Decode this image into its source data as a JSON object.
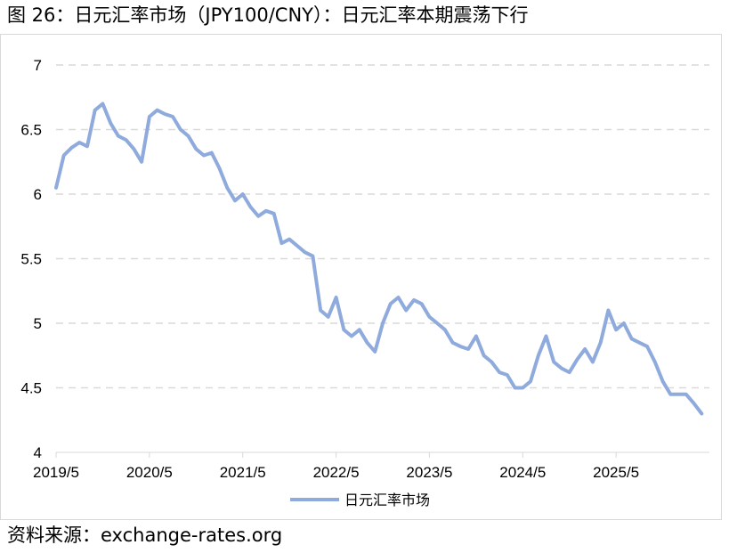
{
  "title": "图 26：日元汇率市场（JPY100/CNY）：日元汇率本期震荡下行",
  "source": "资料来源：exchange-rates.org",
  "chart_data": {
    "type": "line",
    "title": "图 26：日元汇率市场（JPY100/CNY）：日元汇率本期震荡下行",
    "xlabel": "",
    "ylabel": "",
    "x_tick_labels": [
      "2019/5",
      "2020/5",
      "2021/5",
      "2022/5",
      "2023/5",
      "2024/5",
      "2025/5"
    ],
    "y_tick_labels": [
      "4",
      "4.5",
      "5",
      "5.5",
      "6",
      "6.5",
      "7"
    ],
    "ylim": [
      4,
      7
    ],
    "xlim": [
      "2019-05",
      "2026-05"
    ],
    "grid": "horizontal dashed",
    "legend": "bottom-center",
    "color": "#8faadc",
    "series": [
      {
        "name": "日元汇率市场",
        "x": [
          "2019-05",
          "2019-06",
          "2019-07",
          "2019-08",
          "2019-09",
          "2019-10",
          "2019-11",
          "2019-12",
          "2020-01",
          "2020-02",
          "2020-03",
          "2020-04",
          "2020-05",
          "2020-06",
          "2020-07",
          "2020-08",
          "2020-09",
          "2020-10",
          "2020-11",
          "2020-12",
          "2021-01",
          "2021-02",
          "2021-03",
          "2021-04",
          "2021-05",
          "2021-06",
          "2021-07",
          "2021-08",
          "2021-09",
          "2021-10",
          "2021-11",
          "2021-12",
          "2022-01",
          "2022-02",
          "2022-03",
          "2022-04",
          "2022-05",
          "2022-06",
          "2022-07",
          "2022-08",
          "2022-09",
          "2022-10",
          "2022-11",
          "2022-12",
          "2023-01",
          "2023-02",
          "2023-03",
          "2023-04",
          "2023-05",
          "2023-06",
          "2023-07",
          "2023-08",
          "2023-09",
          "2023-10",
          "2023-11",
          "2023-12",
          "2024-01",
          "2024-02",
          "2024-03",
          "2024-04",
          "2024-05",
          "2024-06",
          "2024-07",
          "2024-08",
          "2024-09",
          "2024-10",
          "2024-11",
          "2024-12",
          "2025-01",
          "2025-02",
          "2025-03",
          "2025-04",
          "2025-05",
          "2025-06",
          "2025-07",
          "2025-08",
          "2025-09",
          "2025-10",
          "2025-11",
          "2025-12",
          "2026-01",
          "2026-02",
          "2026-03",
          "2026-04"
        ],
        "values": [
          6.05,
          6.3,
          6.36,
          6.4,
          6.37,
          6.65,
          6.7,
          6.55,
          6.45,
          6.42,
          6.35,
          6.25,
          6.6,
          6.65,
          6.62,
          6.6,
          6.5,
          6.45,
          6.35,
          6.3,
          6.32,
          6.2,
          6.05,
          5.95,
          6.0,
          5.9,
          5.83,
          5.87,
          5.85,
          5.62,
          5.65,
          5.6,
          5.55,
          5.52,
          5.1,
          5.05,
          5.2,
          4.95,
          4.9,
          4.95,
          4.85,
          4.78,
          5.0,
          5.15,
          5.2,
          5.1,
          5.18,
          5.15,
          5.05,
          5.0,
          4.95,
          4.85,
          4.82,
          4.8,
          4.9,
          4.75,
          4.7,
          4.62,
          4.6,
          4.5,
          4.5,
          4.55,
          4.75,
          4.9,
          4.7,
          4.65,
          4.62,
          4.72,
          4.8,
          4.7,
          4.85,
          5.1,
          4.95,
          5.0,
          4.88,
          4.85,
          4.82,
          4.7,
          4.55,
          4.45,
          4.45,
          4.45,
          4.38,
          4.3
        ]
      }
    ]
  }
}
